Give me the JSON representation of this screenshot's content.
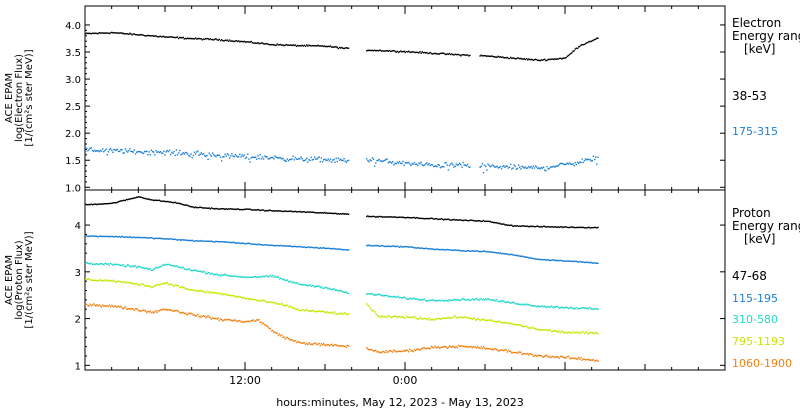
{
  "xlabel": "hours:minutes, May 12, 2023 - May 13, 2023",
  "x_ticks": [
    "12:00",
    "0:00"
  ],
  "chart_data": [
    {
      "type": "scatter",
      "panel": "electron",
      "ylabel_lines": [
        "ACE EPAM",
        "log(Electron Flux)",
        "[1/(cm²s ster MeV)]"
      ],
      "ylim": [
        0.95,
        4.35
      ],
      "y_ticks": [
        "1.0",
        "1.5",
        "2.0",
        "2.5",
        "3.0",
        "3.5",
        "4.0"
      ],
      "legend_title": [
        "Electron",
        "Energy ranges",
        "[keV]"
      ],
      "x_range_hours": [
        0,
        48
      ],
      "data_gap_hours": [
        19.8,
        21.0
      ],
      "data_end_hours": 38.5,
      "series": [
        {
          "name": "38-53",
          "color": "#000000",
          "noise": 0.02,
          "x": [
            0,
            2,
            4,
            6,
            8,
            10,
            12,
            14,
            16,
            18,
            19.8,
            21,
            24,
            26,
            28,
            30,
            32,
            34,
            36,
            37,
            38.3
          ],
          "y": [
            3.85,
            3.87,
            3.83,
            3.79,
            3.76,
            3.74,
            3.7,
            3.65,
            3.63,
            3.62,
            3.57,
            3.55,
            3.52,
            3.49,
            3.46,
            3.44,
            3.4,
            3.36,
            3.4,
            3.62,
            3.76
          ]
        },
        {
          "name": "175-315",
          "color": "#1a7fd4",
          "noise": 0.07,
          "x": [
            0,
            2,
            4,
            6,
            8,
            10,
            12,
            14,
            16,
            18,
            19.8,
            21,
            24,
            26,
            28,
            30,
            32,
            34,
            36,
            38.3
          ],
          "y": [
            1.7,
            1.69,
            1.67,
            1.66,
            1.63,
            1.6,
            1.58,
            1.56,
            1.53,
            1.52,
            1.5,
            1.53,
            1.45,
            1.42,
            1.42,
            1.4,
            1.38,
            1.37,
            1.43,
            1.55
          ]
        }
      ]
    },
    {
      "type": "scatter",
      "panel": "proton",
      "ylabel_lines": [
        "ACE EPAM",
        "log(Proton Flux)",
        "[1/(cm²s ster MeV)]"
      ],
      "ylim": [
        0.9,
        4.75
      ],
      "y_ticks": [
        "1",
        "2",
        "3",
        "4"
      ],
      "legend_title": [
        "Proton",
        "Energy ranges",
        "[keV]"
      ],
      "x_range_hours": [
        0,
        48
      ],
      "data_gap_hours": [
        19.8,
        21.0
      ],
      "data_end_hours": 38.5,
      "series": [
        {
          "name": "47-68",
          "color": "#000000",
          "noise": 0.015,
          "x": [
            0,
            2,
            3,
            4,
            5,
            6,
            7,
            8,
            10,
            12,
            14,
            16,
            18,
            19.8,
            21,
            24,
            26,
            28,
            30,
            32,
            34,
            36,
            38.3
          ],
          "y": [
            4.45,
            4.48,
            4.55,
            4.62,
            4.55,
            4.52,
            4.48,
            4.4,
            4.36,
            4.35,
            4.32,
            4.3,
            4.27,
            4.25,
            4.2,
            4.18,
            4.15,
            4.12,
            4.1,
            4.0,
            3.98,
            3.97,
            3.96
          ]
        },
        {
          "name": "115-195",
          "color": "#1a7fd4",
          "noise": 0.015,
          "x": [
            0,
            2,
            4,
            6,
            8,
            10,
            12,
            14,
            16,
            18,
            19.8,
            21,
            24,
            26,
            28,
            30,
            32,
            34,
            36,
            38.3
          ],
          "y": [
            3.78,
            3.77,
            3.75,
            3.72,
            3.68,
            3.66,
            3.62,
            3.58,
            3.55,
            3.52,
            3.48,
            3.58,
            3.55,
            3.5,
            3.47,
            3.45,
            3.38,
            3.28,
            3.25,
            3.2
          ]
        },
        {
          "name": "310-580",
          "color": "#20d8c8",
          "noise": 0.03,
          "x": [
            0,
            2,
            4,
            5,
            6,
            8,
            10,
            12,
            14,
            16,
            18,
            19.8,
            21,
            24,
            26,
            28,
            30,
            32,
            34,
            36,
            38.3
          ],
          "y": [
            3.2,
            3.17,
            3.12,
            3.05,
            3.18,
            3.05,
            2.95,
            2.9,
            2.92,
            2.75,
            2.68,
            2.55,
            2.55,
            2.45,
            2.4,
            2.42,
            2.43,
            2.35,
            2.28,
            2.25,
            2.22
          ]
        },
        {
          "name": "795-1193",
          "color": "#c8e600",
          "noise": 0.035,
          "x": [
            0,
            2,
            4,
            5,
            6,
            8,
            10,
            12,
            14,
            15,
            16,
            18,
            19.8,
            21,
            22,
            24,
            26,
            28,
            30,
            32,
            34,
            36,
            38.3
          ],
          "y": [
            2.85,
            2.82,
            2.75,
            2.7,
            2.78,
            2.62,
            2.55,
            2.45,
            2.35,
            2.3,
            2.2,
            2.15,
            2.1,
            2.35,
            2.05,
            2.05,
            2.0,
            2.05,
            1.98,
            1.9,
            1.78,
            1.72,
            1.7
          ]
        },
        {
          "name": "1060-1900",
          "color": "#f08010",
          "noise": 0.04,
          "x": [
            0,
            2,
            4,
            5,
            6,
            8,
            10,
            12,
            13,
            14,
            15,
            16,
            18,
            19.8,
            21,
            22,
            24,
            26,
            28,
            30,
            32,
            34,
            36,
            38.3
          ],
          "y": [
            2.32,
            2.28,
            2.2,
            2.15,
            2.22,
            2.1,
            2.0,
            1.95,
            1.98,
            1.75,
            1.6,
            1.5,
            1.45,
            1.42,
            1.38,
            1.3,
            1.32,
            1.4,
            1.42,
            1.38,
            1.3,
            1.22,
            1.18,
            1.12
          ]
        }
      ]
    }
  ]
}
